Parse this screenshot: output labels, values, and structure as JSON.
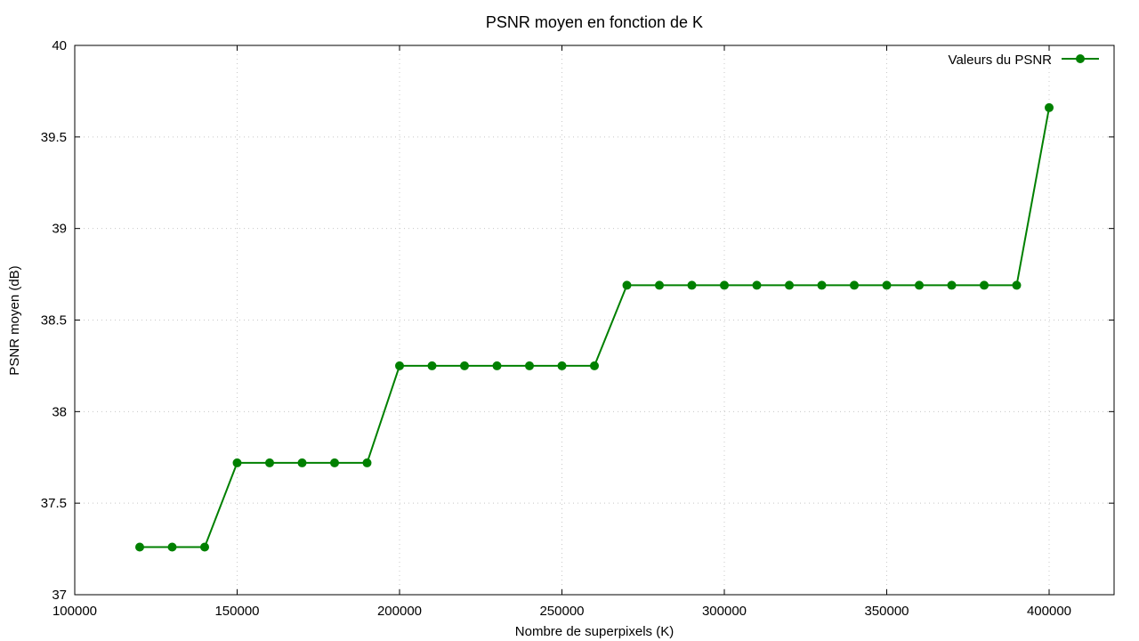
{
  "chart_data": {
    "type": "line",
    "title": "PSNR moyen en fonction de K",
    "xlabel": "Nombre de superpixels (K)",
    "ylabel": "PSNR moyen (dB)",
    "xlim": [
      100000,
      420000
    ],
    "ylim": [
      37,
      40
    ],
    "xticks": [
      100000,
      150000,
      200000,
      250000,
      300000,
      350000,
      400000
    ],
    "yticks": [
      37,
      37.5,
      38,
      38.5,
      39,
      39.5,
      40
    ],
    "xtick_labels": [
      "100000",
      "150000",
      "200000",
      "250000",
      "300000",
      "350000",
      "400000"
    ],
    "ytick_labels": [
      "37",
      "37.5",
      "38",
      "38.5",
      "39",
      "39.5",
      "40"
    ],
    "grid": true,
    "legend_position": "top-right",
    "series": [
      {
        "name": "Valeurs du PSNR",
        "color": "#008000",
        "x": [
          120000,
          130000,
          140000,
          150000,
          160000,
          170000,
          180000,
          190000,
          200000,
          210000,
          220000,
          230000,
          240000,
          250000,
          260000,
          270000,
          280000,
          290000,
          300000,
          310000,
          320000,
          330000,
          340000,
          350000,
          360000,
          370000,
          380000,
          390000,
          400000
        ],
        "y": [
          37.26,
          37.26,
          37.26,
          37.72,
          37.72,
          37.72,
          37.72,
          37.72,
          38.25,
          38.25,
          38.25,
          38.25,
          38.25,
          38.25,
          38.25,
          38.69,
          38.69,
          38.69,
          38.69,
          38.69,
          38.69,
          38.69,
          38.69,
          38.69,
          38.69,
          38.69,
          38.69,
          38.69,
          39.66
        ]
      }
    ]
  }
}
